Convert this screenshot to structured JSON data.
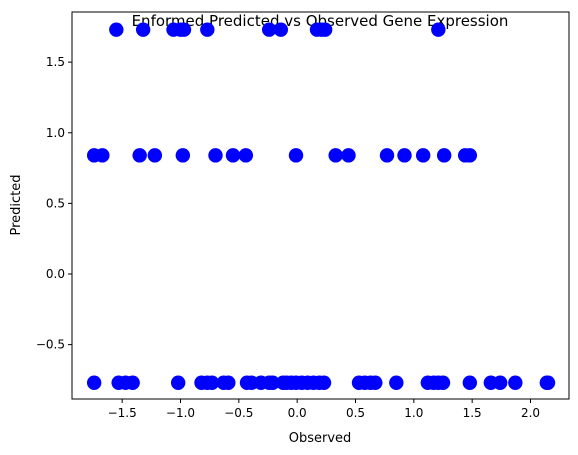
{
  "chart_data": {
    "type": "scatter",
    "title": "Enformed Predicted vs Observed Gene Expression",
    "xlabel": "Observed",
    "ylabel": "Predicted",
    "xlim": [
      -1.93,
      2.33
    ],
    "ylim": [
      -0.885,
      1.855
    ],
    "xticks": [
      -1.5,
      -1.0,
      -0.5,
      0.0,
      0.5,
      1.0,
      1.5,
      2.0
    ],
    "xtick_labels": [
      "−1.5",
      "−1.0",
      "−0.5",
      "0.0",
      "0.5",
      "1.0",
      "1.5",
      "2.0"
    ],
    "yticks": [
      -0.5,
      0.0,
      0.5,
      1.0,
      1.5
    ],
    "ytick_labels": [
      "−0.5",
      "0.0",
      "0.5",
      "1.0",
      "1.5"
    ],
    "grid": false,
    "marker_color": "#0000ff",
    "series": [
      {
        "points": [
          [
            -1.55,
            1.73
          ],
          [
            -1.32,
            1.73
          ],
          [
            -1.06,
            1.73
          ],
          [
            -1.0,
            1.73
          ],
          [
            -0.97,
            1.73
          ],
          [
            -0.77,
            1.73
          ],
          [
            -0.24,
            1.73
          ],
          [
            -0.14,
            1.73
          ],
          [
            0.17,
            1.73
          ],
          [
            0.21,
            1.73
          ],
          [
            0.24,
            1.73
          ],
          [
            1.21,
            1.73
          ],
          [
            -1.74,
            0.84
          ],
          [
            -1.67,
            0.84
          ],
          [
            -1.35,
            0.84
          ],
          [
            -1.22,
            0.84
          ],
          [
            -0.98,
            0.84
          ],
          [
            -0.7,
            0.84
          ],
          [
            -0.55,
            0.84
          ],
          [
            -0.44,
            0.84
          ],
          [
            -0.01,
            0.84
          ],
          [
            0.33,
            0.84
          ],
          [
            0.44,
            0.84
          ],
          [
            0.77,
            0.84
          ],
          [
            0.92,
            0.84
          ],
          [
            1.08,
            0.84
          ],
          [
            1.26,
            0.84
          ],
          [
            1.44,
            0.84
          ],
          [
            1.48,
            0.84
          ],
          [
            -1.74,
            -0.77
          ],
          [
            -1.53,
            -0.77
          ],
          [
            -1.47,
            -0.77
          ],
          [
            -1.41,
            -0.77
          ],
          [
            -1.02,
            -0.77
          ],
          [
            -0.82,
            -0.77
          ],
          [
            -0.77,
            -0.77
          ],
          [
            -0.73,
            -0.77
          ],
          [
            -0.63,
            -0.77
          ],
          [
            -0.59,
            -0.77
          ],
          [
            -0.43,
            -0.77
          ],
          [
            -0.39,
            -0.77
          ],
          [
            -0.31,
            -0.77
          ],
          [
            -0.24,
            -0.77
          ],
          [
            -0.21,
            -0.77
          ],
          [
            -0.12,
            -0.77
          ],
          [
            -0.09,
            -0.77
          ],
          [
            -0.05,
            -0.77
          ],
          [
            -0.01,
            -0.77
          ],
          [
            0.04,
            -0.77
          ],
          [
            0.09,
            -0.77
          ],
          [
            0.14,
            -0.77
          ],
          [
            0.19,
            -0.77
          ],
          [
            0.23,
            -0.77
          ],
          [
            0.53,
            -0.77
          ],
          [
            0.58,
            -0.77
          ],
          [
            0.63,
            -0.77
          ],
          [
            0.67,
            -0.77
          ],
          [
            0.85,
            -0.77
          ],
          [
            1.12,
            -0.77
          ],
          [
            1.17,
            -0.77
          ],
          [
            1.21,
            -0.77
          ],
          [
            1.25,
            -0.77
          ],
          [
            1.48,
            -0.77
          ],
          [
            1.66,
            -0.77
          ],
          [
            1.74,
            -0.77
          ],
          [
            1.87,
            -0.77
          ],
          [
            2.14,
            -0.77
          ],
          [
            2.15,
            -0.77
          ]
        ]
      }
    ]
  }
}
